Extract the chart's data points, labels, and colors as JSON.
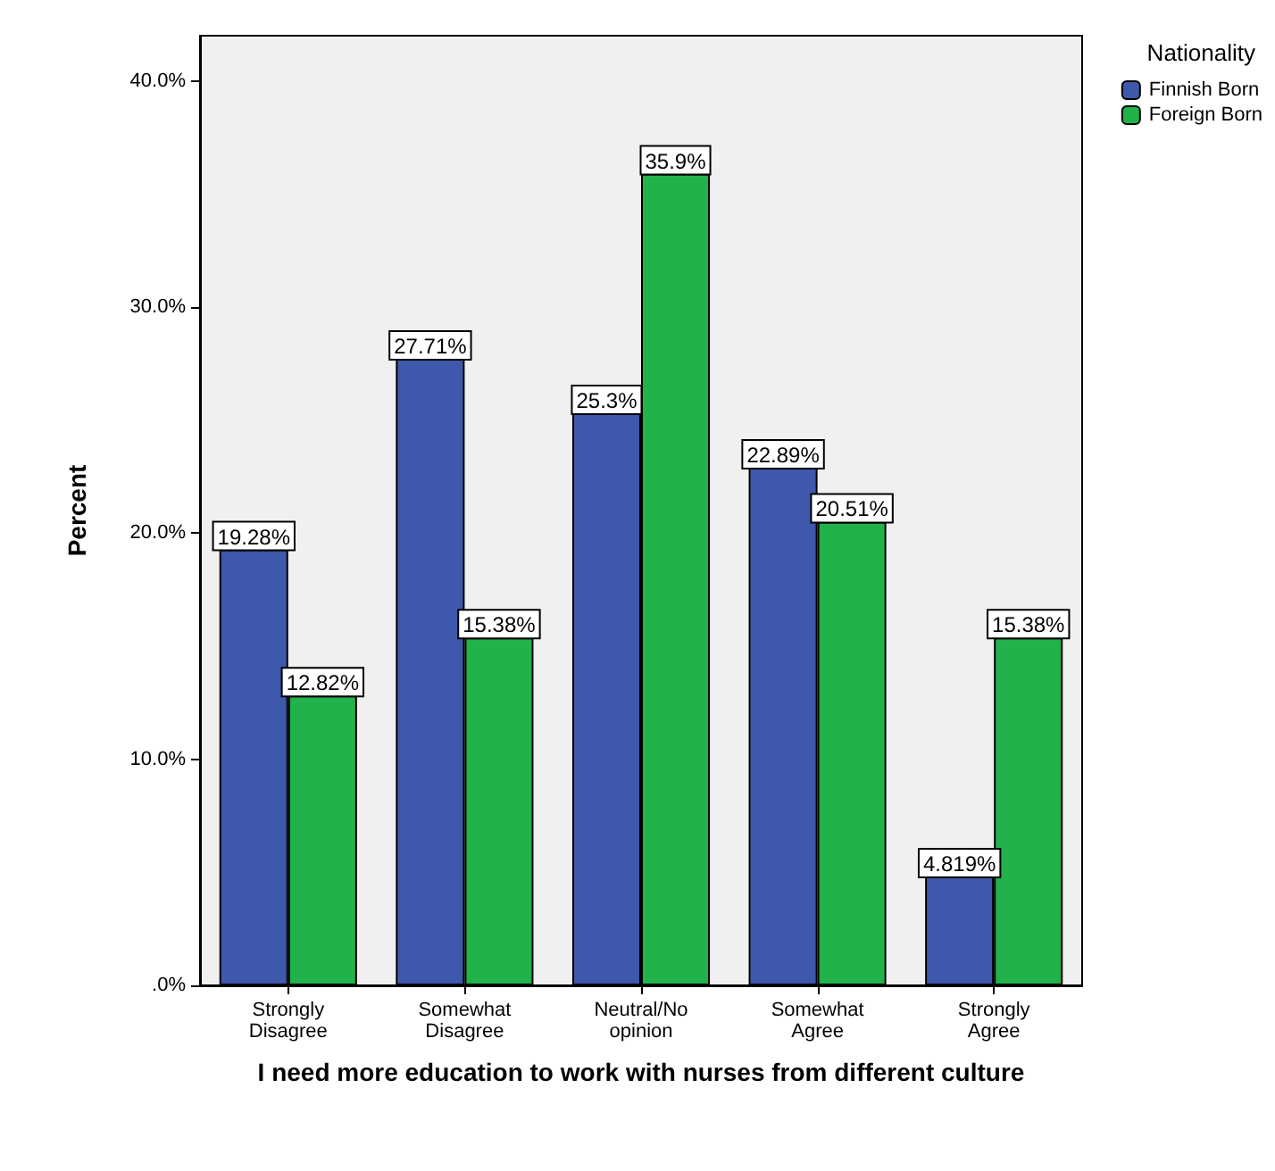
{
  "chart_data": {
    "type": "bar",
    "xlabel": "I need more education to work with nurses from different culture",
    "ylabel": "Percent",
    "legend_title": "Nationality",
    "categories": [
      "Strongly Disagree",
      "Somewhat Disagree",
      "Neutral/No opinion",
      "Somewhat Agree",
      "Strongly Agree"
    ],
    "series": [
      {
        "name": "Finnish Born",
        "color": "#3e58ac",
        "values": [
          19.28,
          27.71,
          25.3,
          22.89,
          4.819
        ],
        "value_labels": [
          "19.28%",
          "27.71%",
          "25.3%",
          "22.89%",
          "4.819%"
        ]
      },
      {
        "name": "Foreign Born",
        "color": "#21b24b",
        "values": [
          12.82,
          15.38,
          35.9,
          20.51,
          15.38
        ],
        "value_labels": [
          "12.82%",
          "15.38%",
          "35.9%",
          "20.51%",
          "15.38%"
        ]
      }
    ],
    "ylim": [
      0,
      42
    ],
    "yticks": [
      {
        "value": 0,
        "label": ".0%"
      },
      {
        "value": 10,
        "label": "10.0%"
      },
      {
        "value": 20,
        "label": "20.0%"
      },
      {
        "value": 30,
        "label": "30.0%"
      },
      {
        "value": 40,
        "label": "40.0%"
      }
    ],
    "grid": false,
    "legend": "top right"
  }
}
